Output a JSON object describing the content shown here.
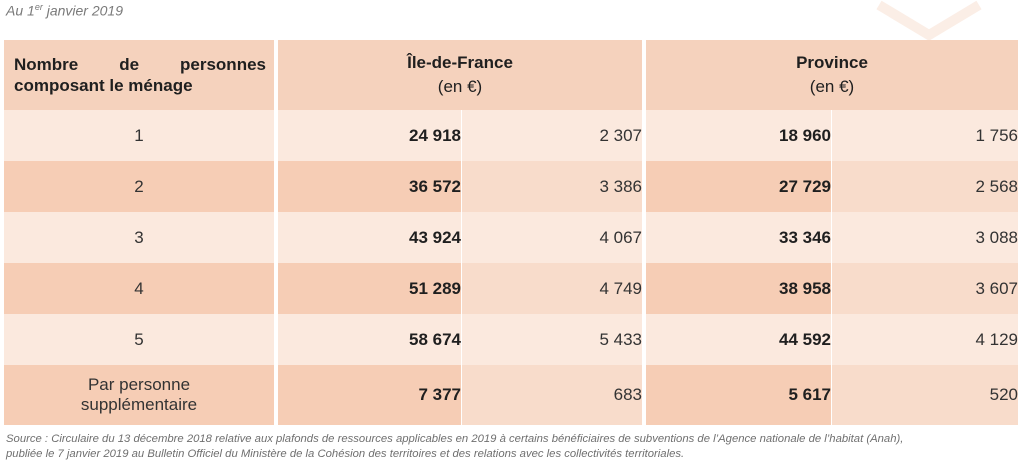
{
  "date_prefix": "Au 1",
  "date_sup": "er",
  "date_suffix": " janvier 2019",
  "header": {
    "household": "Nombre de personnes composant le ménage",
    "idf_title": "Île-de-France",
    "idf_unit": "(en €)",
    "prov_title": "Province",
    "prov_unit": "(en €)"
  },
  "rows": [
    {
      "label": "1",
      "idf_a": "24 918",
      "idf_b": "2 307",
      "prov_a": "18 960",
      "prov_b": "1 756"
    },
    {
      "label": "2",
      "idf_a": "36 572",
      "idf_b": "3 386",
      "prov_a": "27 729",
      "prov_b": "2 568"
    },
    {
      "label": "3",
      "idf_a": "43 924",
      "idf_b": "4 067",
      "prov_a": "33 346",
      "prov_b": "3 088"
    },
    {
      "label": "4",
      "idf_a": "51 289",
      "idf_b": "4 749",
      "prov_a": "38 958",
      "prov_b": "3 607"
    },
    {
      "label": "5",
      "idf_a": "58 674",
      "idf_b": "5 433",
      "prov_a": "44 592",
      "prov_b": "4 129"
    },
    {
      "label_line1": "Par personne",
      "label_line2": "supplémentaire",
      "idf_a": "7 377",
      "idf_b": "683",
      "prov_a": "5 617",
      "prov_b": "520"
    }
  ],
  "source_line1": "Source : Circulaire du 13 décembre 2018 relative aux plafonds de ressources applicables en 2019 à certains bénéficiaires de subventions de l’Agence nationale de l’habitat (Anah),",
  "source_line2": "publiée le 7 janvier 2019 au Bulletin Officiel du Ministère de la Cohésion des territoires et des relations avec les collectivités territoriales.",
  "colors": {
    "header": "#f5d2bd",
    "row_dark": "#f6cdb5",
    "row_light": "#f9dfcf"
  }
}
